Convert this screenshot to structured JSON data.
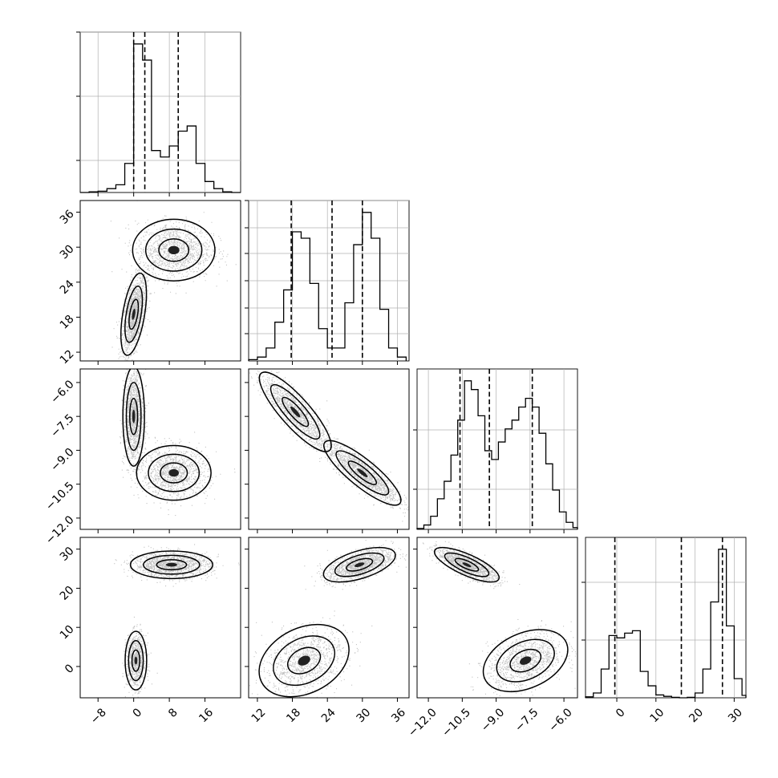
{
  "chart_data": {
    "type": "corner",
    "parameters": [
      {
        "ticks": [
          -8,
          0,
          8,
          16
        ],
        "tick_labels": [
          "−8",
          "0",
          "8",
          "16"
        ],
        "range": [
          -12,
          24
        ],
        "quantiles": [
          0,
          2.5,
          10
        ],
        "hist_bins": [
          -12,
          -10,
          -8,
          -6,
          -4,
          -2,
          0,
          2,
          4,
          6,
          8,
          10,
          12,
          14,
          16,
          18,
          20,
          22,
          24
        ],
        "hist_counts": [
          0,
          1,
          2,
          6,
          12,
          45,
          230,
          205,
          65,
          55,
          72,
          95,
          103,
          45,
          17,
          6,
          1,
          0
        ]
      },
      {
        "ticks": [
          12,
          18,
          24,
          30,
          36
        ],
        "tick_labels": [
          "12",
          "18",
          "24",
          "30",
          "36"
        ],
        "range": [
          10.5,
          38
        ],
        "quantiles": [
          17.8,
          24.8,
          30
        ],
        "hist_bins": [
          10.5,
          12,
          13.5,
          15,
          16.5,
          18,
          19.5,
          21,
          22.5,
          24,
          25.5,
          27,
          28.5,
          30,
          31.5,
          33,
          34.5,
          36,
          37.5
        ],
        "hist_counts": [
          1,
          3,
          10,
          30,
          55,
          100,
          95,
          60,
          25,
          10,
          10,
          45,
          90,
          115,
          95,
          40,
          10,
          3
        ]
      },
      {
        "ticks": [
          -12.0,
          -10.5,
          -9.0,
          -7.5,
          -6.0
        ],
        "tick_labels": [
          "−12.0",
          "−10.5",
          "−9.0",
          "−7.5",
          "−6.0"
        ],
        "range": [
          -12.5,
          -5.4
        ],
        "quantiles": [
          -10.6,
          -9.3,
          -7.4
        ],
        "hist_bins": [
          -12.5,
          -12.2,
          -11.9,
          -11.6,
          -11.3,
          -11.0,
          -10.7,
          -10.4,
          -10.1,
          -9.8,
          -9.5,
          -9.2,
          -8.9,
          -8.6,
          -8.3,
          -8.0,
          -7.7,
          -7.4,
          -7.1,
          -6.8,
          -6.5,
          -6.2,
          -5.9,
          -5.6,
          -5.4
        ],
        "hist_counts": [
          1,
          5,
          15,
          35,
          55,
          85,
          125,
          170,
          160,
          130,
          90,
          80,
          100,
          115,
          125,
          140,
          150,
          140,
          110,
          75,
          45,
          20,
          8,
          2
        ]
      },
      {
        "ticks": [
          0,
          10,
          20,
          30
        ],
        "tick_labels": [
          "0",
          "10",
          "20",
          "30"
        ],
        "range": [
          -8,
          33
        ],
        "quantiles": [
          -0.5,
          16.5,
          27
        ],
        "hist_bins": [
          -8,
          -6,
          -4,
          -2,
          0,
          2,
          4,
          6,
          8,
          10,
          12,
          14,
          16,
          18,
          20,
          22,
          24,
          26,
          28,
          30,
          32,
          33
        ],
        "hist_counts": [
          2,
          10,
          60,
          130,
          125,
          135,
          140,
          55,
          25,
          6,
          3,
          1,
          0,
          1,
          10,
          60,
          200,
          310,
          150,
          40,
          5
        ]
      }
    ],
    "hist_yticks": [
      [
        0.2,
        0.6,
        1.0
      ],
      [
        0.17,
        0.33,
        0.5,
        0.67,
        0.83,
        1.0
      ],
      [
        0.25,
        0.62
      ],
      [
        0.36,
        0.72
      ]
    ],
    "blobs": [
      [
        [
          0,
          18.5,
          1.3,
          3.2,
          0.5,
          1.0
        ],
        [
          9,
          29.5,
          4.2,
          2.4,
          0,
          0.85
        ]
      ],
      [
        [
          0,
          -7.5,
          1.1,
          1.0,
          0,
          1.0
        ],
        [
          9,
          -10.0,
          3.8,
          0.55,
          0,
          0.8
        ]
      ],
      [
        [
          18.5,
          -7.3,
          2.8,
          0.8,
          -0.85,
          0.9
        ],
        [
          30,
          -10.0,
          3.0,
          0.65,
          -0.85,
          1.0
        ]
      ],
      [
        [
          0.5,
          1.5,
          1.1,
          3.4,
          0,
          0.6
        ],
        [
          8.5,
          26,
          4.2,
          1.6,
          0,
          1.0
        ]
      ],
      [
        [
          20,
          1.5,
          3.5,
          4.2,
          0.3,
          0.7
        ],
        [
          29.5,
          26,
          2.8,
          2.0,
          0.55,
          1.0
        ]
      ],
      [
        [
          -7.7,
          1.5,
          0.85,
          3.6,
          0.35,
          0.75
        ],
        [
          -10.3,
          26,
          0.65,
          2.0,
          -0.75,
          1.0
        ]
      ]
    ]
  }
}
